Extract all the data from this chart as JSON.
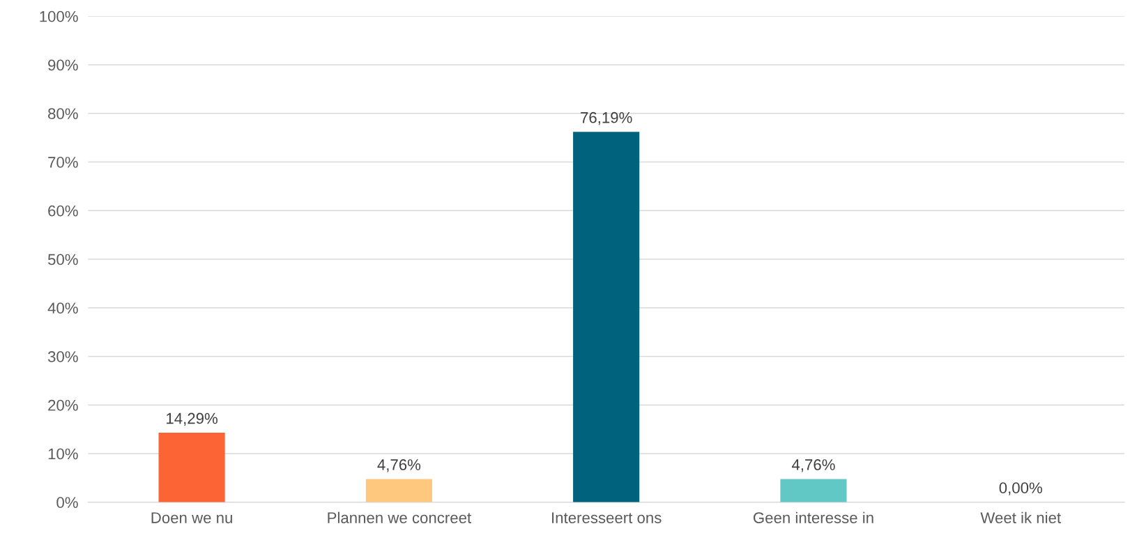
{
  "chart_data": {
    "type": "bar",
    "categories": [
      "Doen we nu",
      "Plannen we concreet",
      "Interesseert ons",
      "Geen interesse in",
      "Weet ik niet"
    ],
    "values": [
      14.29,
      4.76,
      76.19,
      4.76,
      0.0
    ],
    "colors": [
      "#fc6435",
      "#fec87e",
      "#00627c",
      "#62c8c6",
      "#a5a5a5"
    ],
    "value_labels": [
      "14,29%",
      "4,76%",
      "76,19%",
      "4,76%",
      "0,00%"
    ],
    "ylim": [
      0,
      100
    ],
    "yticks": [
      {
        "value": 0,
        "label": "0%"
      },
      {
        "value": 10,
        "label": "10%"
      },
      {
        "value": 20,
        "label": "20%"
      },
      {
        "value": 30,
        "label": "30%"
      },
      {
        "value": 40,
        "label": "40%"
      },
      {
        "value": 50,
        "label": "50%"
      },
      {
        "value": 60,
        "label": "60%"
      },
      {
        "value": 70,
        "label": "70%"
      },
      {
        "value": 80,
        "label": "80%"
      },
      {
        "value": 90,
        "label": "90%"
      },
      {
        "value": 100,
        "label": "100%"
      }
    ],
    "grid": "y",
    "legend": false
  }
}
